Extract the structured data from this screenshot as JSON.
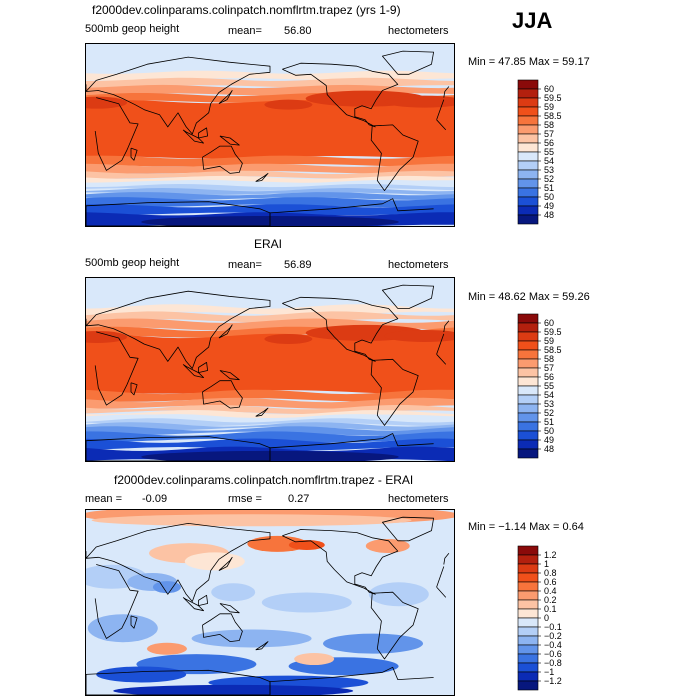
{
  "season": "JJA",
  "chart_data": [
    {
      "type": "heatmap",
      "title": "f2000dev.colinparams.colinpatch.nomflrtm.trapez (yrs 1-9)",
      "variable": "500mb geop height",
      "units": "hectometers",
      "mean_label": "mean=",
      "mean": "56.80",
      "range_label": "Min =  47.85 Max =  59.17",
      "min": 47.85,
      "max": 59.17,
      "levels": [
        "60",
        "59.5",
        "59",
        "58.5",
        "58",
        "57",
        "56",
        "55",
        "54",
        "53",
        "52",
        "51",
        "50",
        "49",
        "48"
      ],
      "colors": [
        "#8a0a0a",
        "#b3200e",
        "#dc3b13",
        "#f0501a",
        "#f7743c",
        "#fb9b6f",
        "#fcc3a4",
        "#fde6d5",
        "#d9e8fa",
        "#b3cff7",
        "#8db4f1",
        "#6294ea",
        "#3a73e2",
        "#1b50d6",
        "#0b2bb5",
        "#07177e"
      ]
    },
    {
      "type": "heatmap",
      "title": "ERAI",
      "variable": "500mb geop height",
      "units": "hectometers",
      "mean_label": "mean=",
      "mean": "56.89",
      "range_label": "Min =  48.62 Max =  59.26",
      "min": 48.62,
      "max": 59.26,
      "levels": [
        "60",
        "59.5",
        "59",
        "58.5",
        "58",
        "57",
        "56",
        "55",
        "54",
        "53",
        "52",
        "51",
        "50",
        "49",
        "48"
      ],
      "colors": [
        "#8a0a0a",
        "#b3200e",
        "#dc3b13",
        "#f0501a",
        "#f7743c",
        "#fb9b6f",
        "#fcc3a4",
        "#fde6d5",
        "#d9e8fa",
        "#b3cff7",
        "#8db4f1",
        "#6294ea",
        "#3a73e2",
        "#1b50d6",
        "#0b2bb5",
        "#07177e"
      ]
    },
    {
      "type": "heatmap",
      "title": "f2000dev.colinparams.colinpatch.nomflrtm.trapez - ERAI",
      "units": "hectometers",
      "mean_label": "mean =",
      "mean": "-0.09",
      "rmse_label": "rmse =",
      "rmse": "0.27",
      "range_label": "Min =  −1.14 Max =   0.64",
      "min": -1.14,
      "max": 0.64,
      "levels": [
        "1.2",
        "1",
        "0.8",
        "0.6",
        "0.4",
        "0.2",
        "0.1",
        "0",
        "−0.1",
        "−0.2",
        "−0.4",
        "−0.6",
        "−0.8",
        "−1",
        "−1.2"
      ],
      "colors": [
        "#8a0a0a",
        "#b3200e",
        "#dc3b13",
        "#f0501a",
        "#f7743c",
        "#fb9b6f",
        "#fcc3a4",
        "#fde6d5",
        "#d9e8fa",
        "#b3cff7",
        "#8db4f1",
        "#6294ea",
        "#3a73e2",
        "#1b50d6",
        "#0b2bb5",
        "#07177e"
      ]
    }
  ]
}
